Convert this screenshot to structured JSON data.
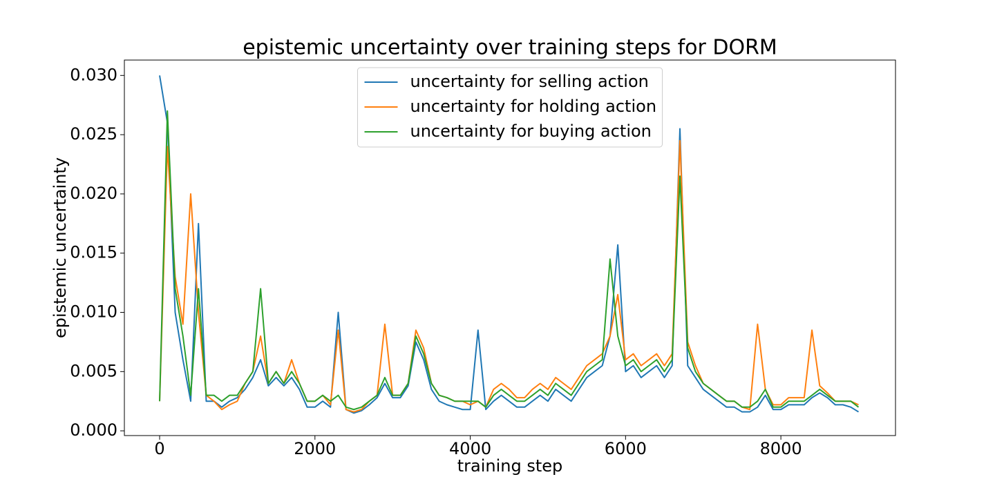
{
  "chart_data": {
    "type": "line",
    "title": "epistemic uncertainty over training steps for DORM",
    "xlabel": "training step",
    "ylabel": "epistemic uncertainty",
    "x": [
      0,
      100,
      200,
      300,
      400,
      500,
      600,
      700,
      800,
      900,
      1000,
      1100,
      1200,
      1300,
      1400,
      1500,
      1600,
      1700,
      1800,
      1900,
      2000,
      2100,
      2200,
      2300,
      2400,
      2500,
      2600,
      2700,
      2800,
      2900,
      3000,
      3100,
      3200,
      3300,
      3400,
      3500,
      3600,
      3700,
      3800,
      3900,
      4000,
      4100,
      4200,
      4300,
      4400,
      4500,
      4600,
      4700,
      4800,
      4900,
      5000,
      5100,
      5200,
      5300,
      5400,
      5500,
      5600,
      5700,
      5800,
      5900,
      6000,
      6100,
      6200,
      6300,
      6400,
      6500,
      6600,
      6700,
      6800,
      6900,
      7000,
      7100,
      7200,
      7300,
      7400,
      7500,
      7600,
      7700,
      7800,
      7900,
      8000,
      8100,
      8200,
      8300,
      8400,
      8500,
      8600,
      8700,
      8800,
      8900,
      9000
    ],
    "series": [
      {
        "name": "uncertainty for selling action",
        "color": "#1f77b4",
        "values": [
          0.03,
          0.026,
          0.01,
          0.006,
          0.0025,
          0.0175,
          0.0025,
          0.0025,
          0.002,
          0.0025,
          0.0028,
          0.0035,
          0.0045,
          0.006,
          0.0038,
          0.0045,
          0.0038,
          0.0045,
          0.0035,
          0.002,
          0.002,
          0.0025,
          0.002,
          0.01,
          0.0018,
          0.0015,
          0.0017,
          0.0022,
          0.0028,
          0.004,
          0.0028,
          0.0028,
          0.0038,
          0.0075,
          0.006,
          0.0035,
          0.0025,
          0.0022,
          0.002,
          0.0018,
          0.0018,
          0.0085,
          0.0018,
          0.0025,
          0.003,
          0.0025,
          0.002,
          0.002,
          0.0025,
          0.003,
          0.0025,
          0.0035,
          0.003,
          0.0025,
          0.0035,
          0.0045,
          0.005,
          0.0055,
          0.008,
          0.0157,
          0.005,
          0.0055,
          0.0045,
          0.005,
          0.0055,
          0.0045,
          0.0055,
          0.0255,
          0.0055,
          0.0045,
          0.0035,
          0.003,
          0.0025,
          0.002,
          0.002,
          0.0016,
          0.0016,
          0.002,
          0.003,
          0.0018,
          0.0018,
          0.0022,
          0.0022,
          0.0022,
          0.0028,
          0.0032,
          0.0028,
          0.0022,
          0.0022,
          0.002,
          0.0016
        ]
      },
      {
        "name": "uncertainty for holding action",
        "color": "#ff7f0e",
        "values": [
          0.0025,
          0.024,
          0.013,
          0.009,
          0.02,
          0.01,
          0.003,
          0.0025,
          0.0018,
          0.0022,
          0.0025,
          0.004,
          0.005,
          0.008,
          0.004,
          0.005,
          0.004,
          0.006,
          0.004,
          0.0025,
          0.0025,
          0.003,
          0.0022,
          0.0085,
          0.0018,
          0.0016,
          0.0018,
          0.0025,
          0.003,
          0.009,
          0.003,
          0.003,
          0.004,
          0.0085,
          0.007,
          0.004,
          0.003,
          0.0028,
          0.0025,
          0.0025,
          0.0022,
          0.0025,
          0.002,
          0.0035,
          0.004,
          0.0035,
          0.0028,
          0.0028,
          0.0035,
          0.004,
          0.0035,
          0.0045,
          0.004,
          0.0035,
          0.0045,
          0.0055,
          0.006,
          0.0065,
          0.008,
          0.0115,
          0.006,
          0.0065,
          0.0055,
          0.006,
          0.0065,
          0.0055,
          0.0065,
          0.0245,
          0.0075,
          0.0055,
          0.004,
          0.0035,
          0.003,
          0.0025,
          0.0025,
          0.002,
          0.0018,
          0.009,
          0.0035,
          0.0022,
          0.0022,
          0.0028,
          0.0028,
          0.0028,
          0.0085,
          0.0038,
          0.0032,
          0.0025,
          0.0025,
          0.0025,
          0.0022
        ]
      },
      {
        "name": "uncertainty for buying action",
        "color": "#2ca02c",
        "values": [
          0.0025,
          0.027,
          0.012,
          0.008,
          0.003,
          0.012,
          0.003,
          0.003,
          0.0025,
          0.003,
          0.003,
          0.004,
          0.005,
          0.012,
          0.004,
          0.005,
          0.004,
          0.005,
          0.004,
          0.0025,
          0.0025,
          0.003,
          0.0025,
          0.003,
          0.002,
          0.0018,
          0.002,
          0.0025,
          0.003,
          0.0045,
          0.003,
          0.003,
          0.004,
          0.008,
          0.0065,
          0.004,
          0.003,
          0.0028,
          0.0025,
          0.0025,
          0.0025,
          0.0025,
          0.002,
          0.003,
          0.0035,
          0.003,
          0.0025,
          0.0025,
          0.003,
          0.0035,
          0.003,
          0.004,
          0.0035,
          0.003,
          0.004,
          0.005,
          0.0055,
          0.006,
          0.0145,
          0.008,
          0.0055,
          0.006,
          0.005,
          0.0055,
          0.006,
          0.005,
          0.006,
          0.0215,
          0.007,
          0.005,
          0.004,
          0.0035,
          0.003,
          0.0025,
          0.0025,
          0.002,
          0.002,
          0.0025,
          0.0035,
          0.002,
          0.002,
          0.0025,
          0.0025,
          0.0025,
          0.003,
          0.0035,
          0.003,
          0.0025,
          0.0025,
          0.0025,
          0.002
        ]
      }
    ],
    "xlim": [
      -454,
      9476
    ],
    "xticks": [
      0,
      2000,
      4000,
      6000,
      8000
    ],
    "ylim": [
      -0.0004,
      0.0313
    ],
    "yticks": [
      {
        "value": 0,
        "label": "0.000"
      },
      0.005,
      {
        "value": 0.01,
        "label": "0.010"
      },
      0.015,
      {
        "value": 0.02,
        "label": "0.020"
      },
      0.025,
      {
        "value": 0.03,
        "label": "0.030"
      }
    ],
    "legend": "upper center"
  }
}
